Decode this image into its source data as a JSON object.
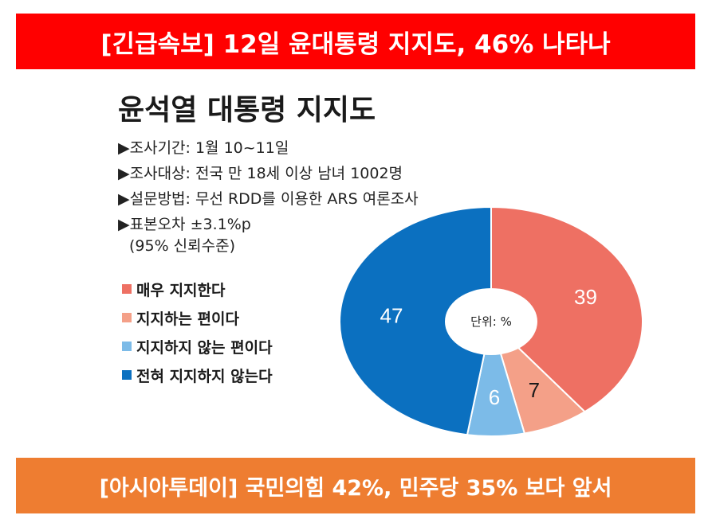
{
  "top_banner": "[긴급속보]  12일  윤대통령 지지도, 46% 나타나",
  "bottom_banner": "[아시아투데이] 국민의힘  42%, 민주당 35% 보다 앞서",
  "chart_data": {
    "type": "pie",
    "title": "윤석열 대통령 지지도",
    "center_label": "단위: %",
    "info": [
      "▶조사기간: 1월 10~11일",
      "▶조사대상: 전국 만 18세 이상 남녀 1002명",
      "▶설문방법: 무선 RDD를 이용한 ARS 여론조사",
      "▶표본오차 ±3.1%p",
      "(95% 신뢰수준)"
    ],
    "categories": [
      "매우 지지한다",
      "지지하는 편이다",
      "지지하지 않는 편이다",
      "전혀 지지하지 않는다"
    ],
    "values": [
      39,
      7,
      6,
      47
    ],
    "value_labels": [
      "39",
      "7",
      "6",
      "47"
    ],
    "colors": [
      "#ee7063",
      "#f4a088",
      "#7cbbe8",
      "#0b70c0"
    ],
    "label_colors": [
      "#ffffff",
      "#1a1a1a",
      "#ffffff",
      "#ffffff"
    ]
  }
}
